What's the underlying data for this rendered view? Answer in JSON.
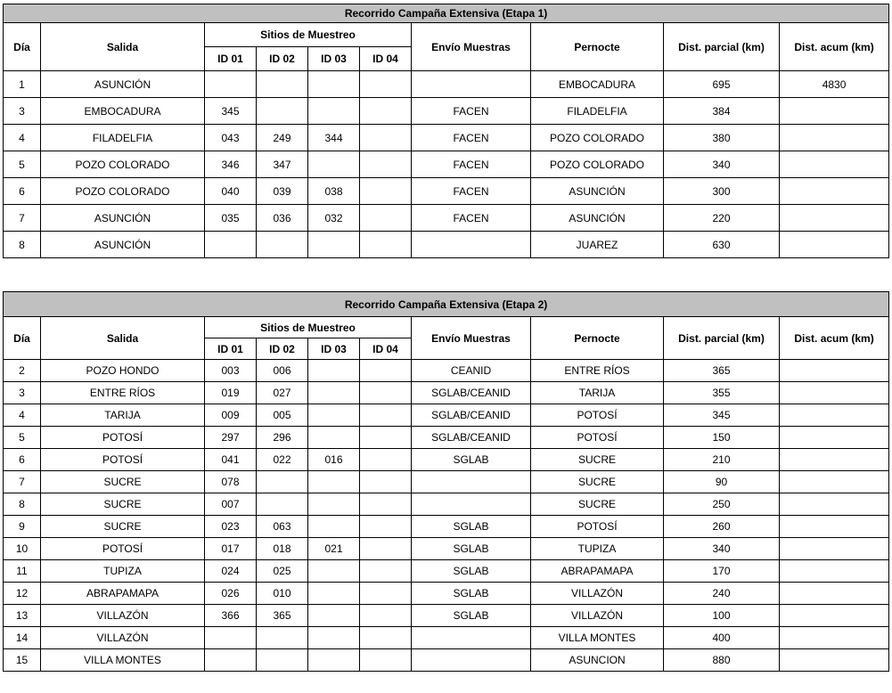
{
  "colors": {
    "title_background": "#c0c0c0",
    "border": "#000000",
    "text": "#000000",
    "page_background": "#ffffff"
  },
  "tables": [
    {
      "title": "Recorrido Campaña Extensiva (Etapa 1)",
      "header": {
        "dia": "Día",
        "salida": "Salida",
        "sitios": "Sitios de Muestreo",
        "ids": [
          "ID 01",
          "ID 02",
          "ID 03",
          "ID 04"
        ],
        "envio": "Envío Muestras",
        "pernocte": "Pernocte",
        "dist_parcial": "Dist. parcial (km)",
        "dist_acum": "Dist. acum (km)"
      },
      "rows": [
        {
          "dia": "1",
          "salida": "ASUNCIÓN",
          "ids": [
            "",
            "",
            "",
            ""
          ],
          "envio": "",
          "pernocte": "EMBOCADURA",
          "dist_parcial": "695",
          "dist_acum": "4830",
          "thick_bottom": true
        },
        {
          "dia": "3",
          "salida": "EMBOCADURA",
          "ids": [
            "345",
            "",
            "",
            ""
          ],
          "envio": "FACEN",
          "pernocte": "FILADELFIA",
          "dist_parcial": "384",
          "dist_acum": "",
          "thick_bottom": true
        },
        {
          "dia": "4",
          "salida": "FILADELFIA",
          "ids": [
            "043",
            "249",
            "344",
            ""
          ],
          "envio": "FACEN",
          "pernocte": "POZO COLORADO",
          "dist_parcial": "380",
          "dist_acum": "",
          "thick_bottom": false
        },
        {
          "dia": "5",
          "salida": "POZO COLORADO",
          "ids": [
            "346",
            "347",
            "",
            ""
          ],
          "envio": "FACEN",
          "pernocte": "POZO COLORADO",
          "dist_parcial": "340",
          "dist_acum": "",
          "thick_bottom": true
        },
        {
          "dia": "6",
          "salida": "POZO COLORADO",
          "ids": [
            "040",
            "039",
            "038",
            ""
          ],
          "envio": "FACEN",
          "pernocte": "ASUNCIÓN",
          "dist_parcial": "300",
          "dist_acum": "",
          "thick_bottom": false
        },
        {
          "dia": "7",
          "salida": "ASUNCIÓN",
          "ids": [
            "035",
            "036",
            "032",
            ""
          ],
          "envio": "FACEN",
          "pernocte": "ASUNCIÓN",
          "dist_parcial": "220",
          "dist_acum": "",
          "thick_bottom": false
        },
        {
          "dia": "8",
          "salida": "ASUNCIÓN",
          "ids": [
            "",
            "",
            "",
            ""
          ],
          "envio": "",
          "pernocte": "JUAREZ",
          "dist_parcial": "630",
          "dist_acum": "",
          "thick_bottom": true
        }
      ]
    },
    {
      "title": "Recorrido Campaña Extensiva (Etapa 2)",
      "header": {
        "dia": "Día",
        "salida": "Salida",
        "sitios": "Sitios de Muestreo",
        "ids": [
          "ID 01",
          "ID 02",
          "ID 03",
          "ID 04"
        ],
        "envio": "Envío Muestras",
        "pernocte": "Pernocte",
        "dist_parcial": "Dist. parcial (km)",
        "dist_acum": "Dist. acum (km)"
      },
      "rows": [
        {
          "dia": "2",
          "salida": "POZO HONDO",
          "ids": [
            "003",
            "006",
            "",
            ""
          ],
          "envio": "CEANID",
          "pernocte": "ENTRE RÍOS",
          "dist_parcial": "365",
          "dist_acum": "",
          "thick_bottom": true
        },
        {
          "dia": "3",
          "salida": "ENTRE RÍOS",
          "ids": [
            "019",
            "027",
            "",
            ""
          ],
          "envio": "SGLAB/CEANID",
          "pernocte": "TARIJA",
          "dist_parcial": "355",
          "dist_acum": "",
          "thick_bottom": false
        },
        {
          "dia": "4",
          "salida": "TARIJA",
          "ids": [
            "009",
            "005",
            "",
            ""
          ],
          "envio": "SGLAB/CEANID",
          "pernocte": "POTOSÍ",
          "dist_parcial": "345",
          "dist_acum": "",
          "thick_bottom": false
        },
        {
          "dia": "5",
          "salida": "POTOSÍ",
          "ids": [
            "297",
            "296",
            "",
            ""
          ],
          "envio": "SGLAB/CEANID",
          "pernocte": "POTOSÍ",
          "dist_parcial": "150",
          "dist_acum": "",
          "thick_bottom": true
        },
        {
          "dia": "6",
          "salida": "POTOSÍ",
          "ids": [
            "041",
            "022",
            "016",
            ""
          ],
          "envio": "SGLAB",
          "pernocte": "SUCRE",
          "dist_parcial": "210",
          "dist_acum": "",
          "thick_bottom": true
        },
        {
          "dia": "7",
          "salida": "SUCRE",
          "ids": [
            "078",
            "",
            "",
            ""
          ],
          "envio": "",
          "pernocte": "SUCRE",
          "dist_parcial": "90",
          "dist_acum": "",
          "thick_bottom": false
        },
        {
          "dia": "8",
          "salida": "SUCRE",
          "ids": [
            "007",
            "",
            "",
            ""
          ],
          "envio": "",
          "pernocte": "SUCRE",
          "dist_parcial": "250",
          "dist_acum": "",
          "thick_bottom": false
        },
        {
          "dia": "9",
          "salida": "SUCRE",
          "ids": [
            "023",
            "063",
            "",
            ""
          ],
          "envio": "SGLAB",
          "pernocte": "POTOSÍ",
          "dist_parcial": "260",
          "dist_acum": "",
          "thick_bottom": true
        },
        {
          "dia": "10",
          "salida": "POTOSÍ",
          "ids": [
            "017",
            "018",
            "021",
            ""
          ],
          "envio": "SGLAB",
          "pernocte": "TUPIZA",
          "dist_parcial": "340",
          "dist_acum": "",
          "thick_bottom": false
        },
        {
          "dia": "11",
          "salida": "TUPIZA",
          "ids": [
            "024",
            "025",
            "",
            ""
          ],
          "envio": "SGLAB",
          "pernocte": "ABRAPAMAPA",
          "dist_parcial": "170",
          "dist_acum": "",
          "thick_bottom": true
        },
        {
          "dia": "12",
          "salida": "ABRAPAMAPA",
          "ids": [
            "026",
            "010",
            "",
            ""
          ],
          "envio": "SGLAB",
          "pernocte": "VILLAZÓN",
          "dist_parcial": "240",
          "dist_acum": "",
          "thick_bottom": false
        },
        {
          "dia": "13",
          "salida": "VILLAZÓN",
          "ids": [
            "366",
            "365",
            "",
            ""
          ],
          "envio": "SGLAB",
          "pernocte": "VILLAZÓN",
          "dist_parcial": "100",
          "dist_acum": "",
          "thick_bottom": false
        },
        {
          "dia": "14",
          "salida": "VILLAZÓN",
          "ids": [
            "",
            "",
            "",
            ""
          ],
          "envio": "",
          "pernocte": "VILLA MONTES",
          "dist_parcial": "400",
          "dist_acum": "",
          "thick_bottom": true
        },
        {
          "dia": "15",
          "salida": "VILLA MONTES",
          "ids": [
            "",
            "",
            "",
            ""
          ],
          "envio": "",
          "pernocte": "ASUNCION",
          "dist_parcial": "880",
          "dist_acum": "",
          "thick_bottom": true
        }
      ]
    }
  ]
}
